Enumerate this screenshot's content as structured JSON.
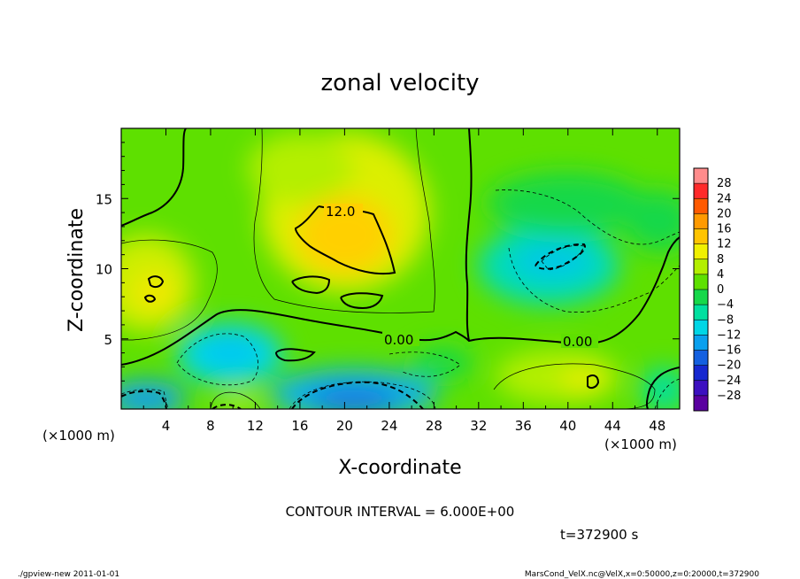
{
  "chart_data": {
    "type": "heatmap",
    "title": "zonal velocity",
    "xlabel": "X-coordinate",
    "ylabel": "Z-coordinate",
    "x_unit": "(×1000 m)",
    "y_unit": "(×1000 m)",
    "xlim": [
      0,
      50
    ],
    "ylim": [
      0,
      20
    ],
    "x_ticks": [
      "4",
      "8",
      "12",
      "16",
      "20",
      "24",
      "28",
      "32",
      "36",
      "40",
      "44",
      "48"
    ],
    "y_ticks": [
      "5",
      "10",
      "15"
    ],
    "colorbar_labels": [
      "28",
      "24",
      "20",
      "16",
      "12",
      "8",
      "4",
      "0",
      "−4",
      "−8",
      "−12",
      "−16",
      "−20",
      "−24",
      "−28"
    ],
    "colorbar_colors": [
      "#ff8c8c",
      "#ff2a2a",
      "#ff5a00",
      "#ff9a00",
      "#ffc400",
      "#f0f000",
      "#b4ef00",
      "#5ee000",
      "#16d84a",
      "#00e0a0",
      "#00d6e6",
      "#0aa0ee",
      "#1460e0",
      "#1628d0",
      "#3c10c0",
      "#5a00a0"
    ],
    "contour_labels": [
      "12.0",
      "0.00",
      "0.00"
    ],
    "contour_interval": "CONTOUR INTERVAL = 6.000E+00",
    "time_label": "t=372900 s",
    "footer_left": "./gpview-new  2011-01-01",
    "footer_right": "MarsCond_VelX.nc@VelX,x=0:50000,z=0:20000,t=372900"
  }
}
